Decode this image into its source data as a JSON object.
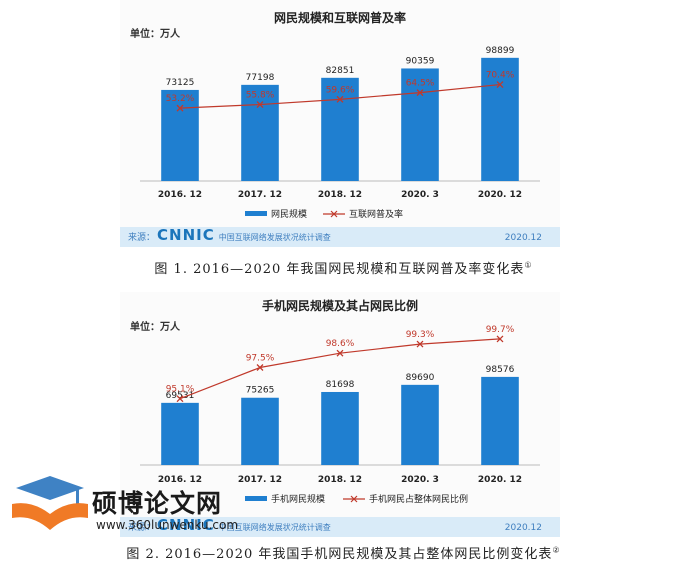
{
  "chart_data": [
    {
      "type": "bar",
      "title": "网民规模和互联网普及率",
      "unit_label": "单位：万人",
      "categories": [
        "2016. 12",
        "2017. 12",
        "2018. 12",
        "2020. 3",
        "2020. 12"
      ],
      "series": [
        {
          "name": "网民规模",
          "kind": "bar",
          "values": [
            73125,
            77198,
            82851,
            90359,
            98899
          ],
          "labels": [
            "73125",
            "77198",
            "82851",
            "90359",
            "98899"
          ],
          "color": "#1f7fd0"
        },
        {
          "name": "互联网普及率",
          "kind": "line",
          "values": [
            53.2,
            55.8,
            59.6,
            64.5,
            70.4
          ],
          "labels": [
            "53.2%",
            "55.8%",
            "59.6%",
            "64.5%",
            "70.4%"
          ],
          "color": "#c0392b"
        }
      ],
      "ylim": [
        0,
        110000
      ],
      "line_ylim": [
        0,
        100
      ],
      "legend": "bottom",
      "source": "来源：",
      "source_brand": "CNNIC",
      "source_text": "中国互联网络发展状况统计调查",
      "date": "2020.12"
    },
    {
      "type": "bar",
      "title": "手机网民规模及其占网民比例",
      "unit_label": "单位：万人",
      "categories": [
        "2016. 12",
        "2017. 12",
        "2018. 12",
        "2020. 3",
        "2020. 12"
      ],
      "series": [
        {
          "name": "手机网民规模",
          "kind": "bar",
          "values": [
            69531,
            75265,
            81698,
            89690,
            98576
          ],
          "labels": [
            "69531",
            "75265",
            "81698",
            "89690",
            "98576"
          ],
          "color": "#1f7fd0"
        },
        {
          "name": "手机网民占整体网民比例",
          "kind": "line",
          "values": [
            95.1,
            97.5,
            98.6,
            99.3,
            99.7
          ],
          "labels": [
            "95.1%",
            "97.5%",
            "98.6%",
            "99.3%",
            "99.7%"
          ],
          "color": "#c0392b"
        }
      ],
      "ylim": [
        0,
        160000
      ],
      "line_ylim": [
        90,
        101
      ],
      "legend": "bottom",
      "source": "来源：",
      "source_brand": "CNNIC",
      "source_text": "中国互联网络发展状况统计调查",
      "date": "2020.12"
    }
  ],
  "captions": {
    "fig1": "图 1. 2016—2020 年我国网民规模和互联网普及率变化表",
    "fig1_note": "①",
    "fig2": "图 2. 2016—2020 年我国手机网民规模及其占整体网民比例变化表",
    "fig2_note": "②"
  },
  "watermark": {
    "title": "硕博论文网",
    "url": "www.360lunwenku.com",
    "colors": {
      "cap": "#3f82c4",
      "book": "#f07a26"
    }
  }
}
